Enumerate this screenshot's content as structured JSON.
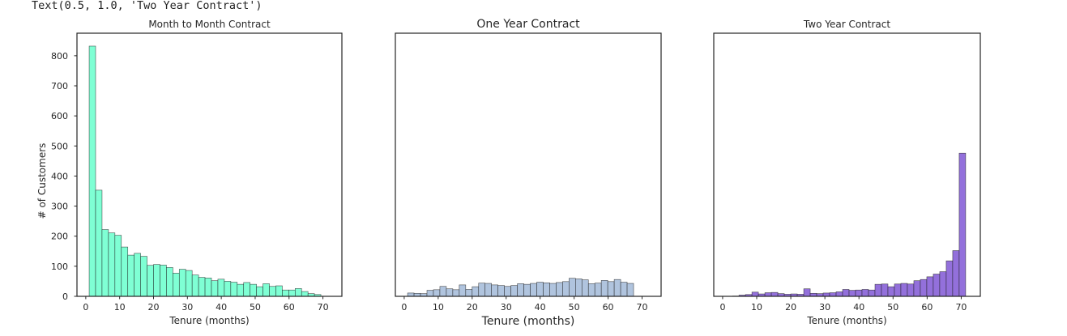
{
  "cell_output": "Text(0.5, 1.0, 'Two Year Contract')",
  "chart_data": [
    {
      "type": "bar",
      "title": "Month to Month Contract",
      "xlabel": "Tenure (months)",
      "ylabel": "# of Customers",
      "color": "#7fffd4",
      "edgecolor": "#1a1a1a",
      "xlim": [
        -2.6,
        75.6
      ],
      "ylim": [
        0,
        875
      ],
      "xticks": [
        0,
        10,
        20,
        30,
        40,
        50,
        60,
        70
      ],
      "yticks": [
        0,
        100,
        200,
        300,
        400,
        500,
        600,
        700,
        800
      ],
      "show_yticks": true,
      "bin_start": 1,
      "bin_width": 1.9,
      "values": [
        832,
        353,
        222,
        211,
        203,
        164,
        137,
        143,
        133,
        103,
        106,
        104,
        96,
        77,
        90,
        86,
        71,
        63,
        61,
        52,
        57,
        50,
        47,
        40,
        46,
        40,
        32,
        42,
        33,
        35,
        21,
        21,
        26,
        16,
        9,
        6
      ]
    },
    {
      "type": "bar",
      "title": "One Year Contract",
      "xlabel": "Tenure (months)",
      "ylabel": "",
      "color": "#b0c4de",
      "edgecolor": "#1a1a1a",
      "xlim": [
        -2.6,
        75.6
      ],
      "ylim": [
        0,
        875
      ],
      "xticks": [
        0,
        10,
        20,
        30,
        40,
        50,
        60,
        70
      ],
      "yticks": [],
      "show_yticks": false,
      "bin_start": 1,
      "bin_width": 1.9,
      "values": [
        11,
        10,
        9,
        20,
        22,
        33,
        25,
        22,
        38,
        23,
        32,
        44,
        43,
        38,
        36,
        33,
        36,
        42,
        40,
        43,
        47,
        45,
        43,
        46,
        49,
        60,
        58,
        55,
        42,
        44,
        53,
        49,
        56,
        47,
        43,
        0
      ]
    },
    {
      "type": "bar",
      "title": "Two Year Contract",
      "xlabel": "Tenure (months)",
      "ylabel": "",
      "color": "#9370db",
      "edgecolor": "#1a1a1a",
      "xlim": [
        -2.6,
        75.6
      ],
      "ylim": [
        0,
        875
      ],
      "xticks": [
        0,
        10,
        20,
        30,
        40,
        50,
        60,
        70
      ],
      "yticks": [],
      "show_yticks": false,
      "bin_start": 1,
      "bin_width": 1.9,
      "values": [
        0,
        1,
        4,
        6,
        14,
        8,
        12,
        13,
        9,
        7,
        8,
        7,
        25,
        10,
        9,
        11,
        12,
        15,
        23,
        20,
        21,
        23,
        21,
        40,
        41,
        32,
        41,
        43,
        41,
        52,
        56,
        65,
        74,
        82,
        118,
        152,
        476
      ]
    }
  ]
}
